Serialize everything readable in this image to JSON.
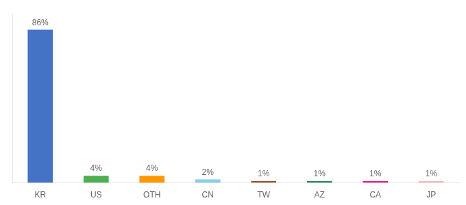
{
  "chart_data": {
    "type": "bar",
    "categories": [
      "KR",
      "US",
      "OTH",
      "CN",
      "TW",
      "AZ",
      "CA",
      "JP"
    ],
    "values": [
      86,
      4,
      4,
      2,
      1,
      1,
      1,
      1
    ],
    "value_labels": [
      "86%",
      "4%",
      "4%",
      "2%",
      "1%",
      "1%",
      "1%",
      "1%"
    ],
    "colors": [
      "#4472c4",
      "#4caf50",
      "#ff9800",
      "#87ceeb",
      "#a0522d",
      "#2e8b57",
      "#e91e8c",
      "#ffb6c1"
    ],
    "ylim": [
      0,
      95
    ],
    "grid": false,
    "data_labels": true,
    "tick_labels": "x"
  }
}
